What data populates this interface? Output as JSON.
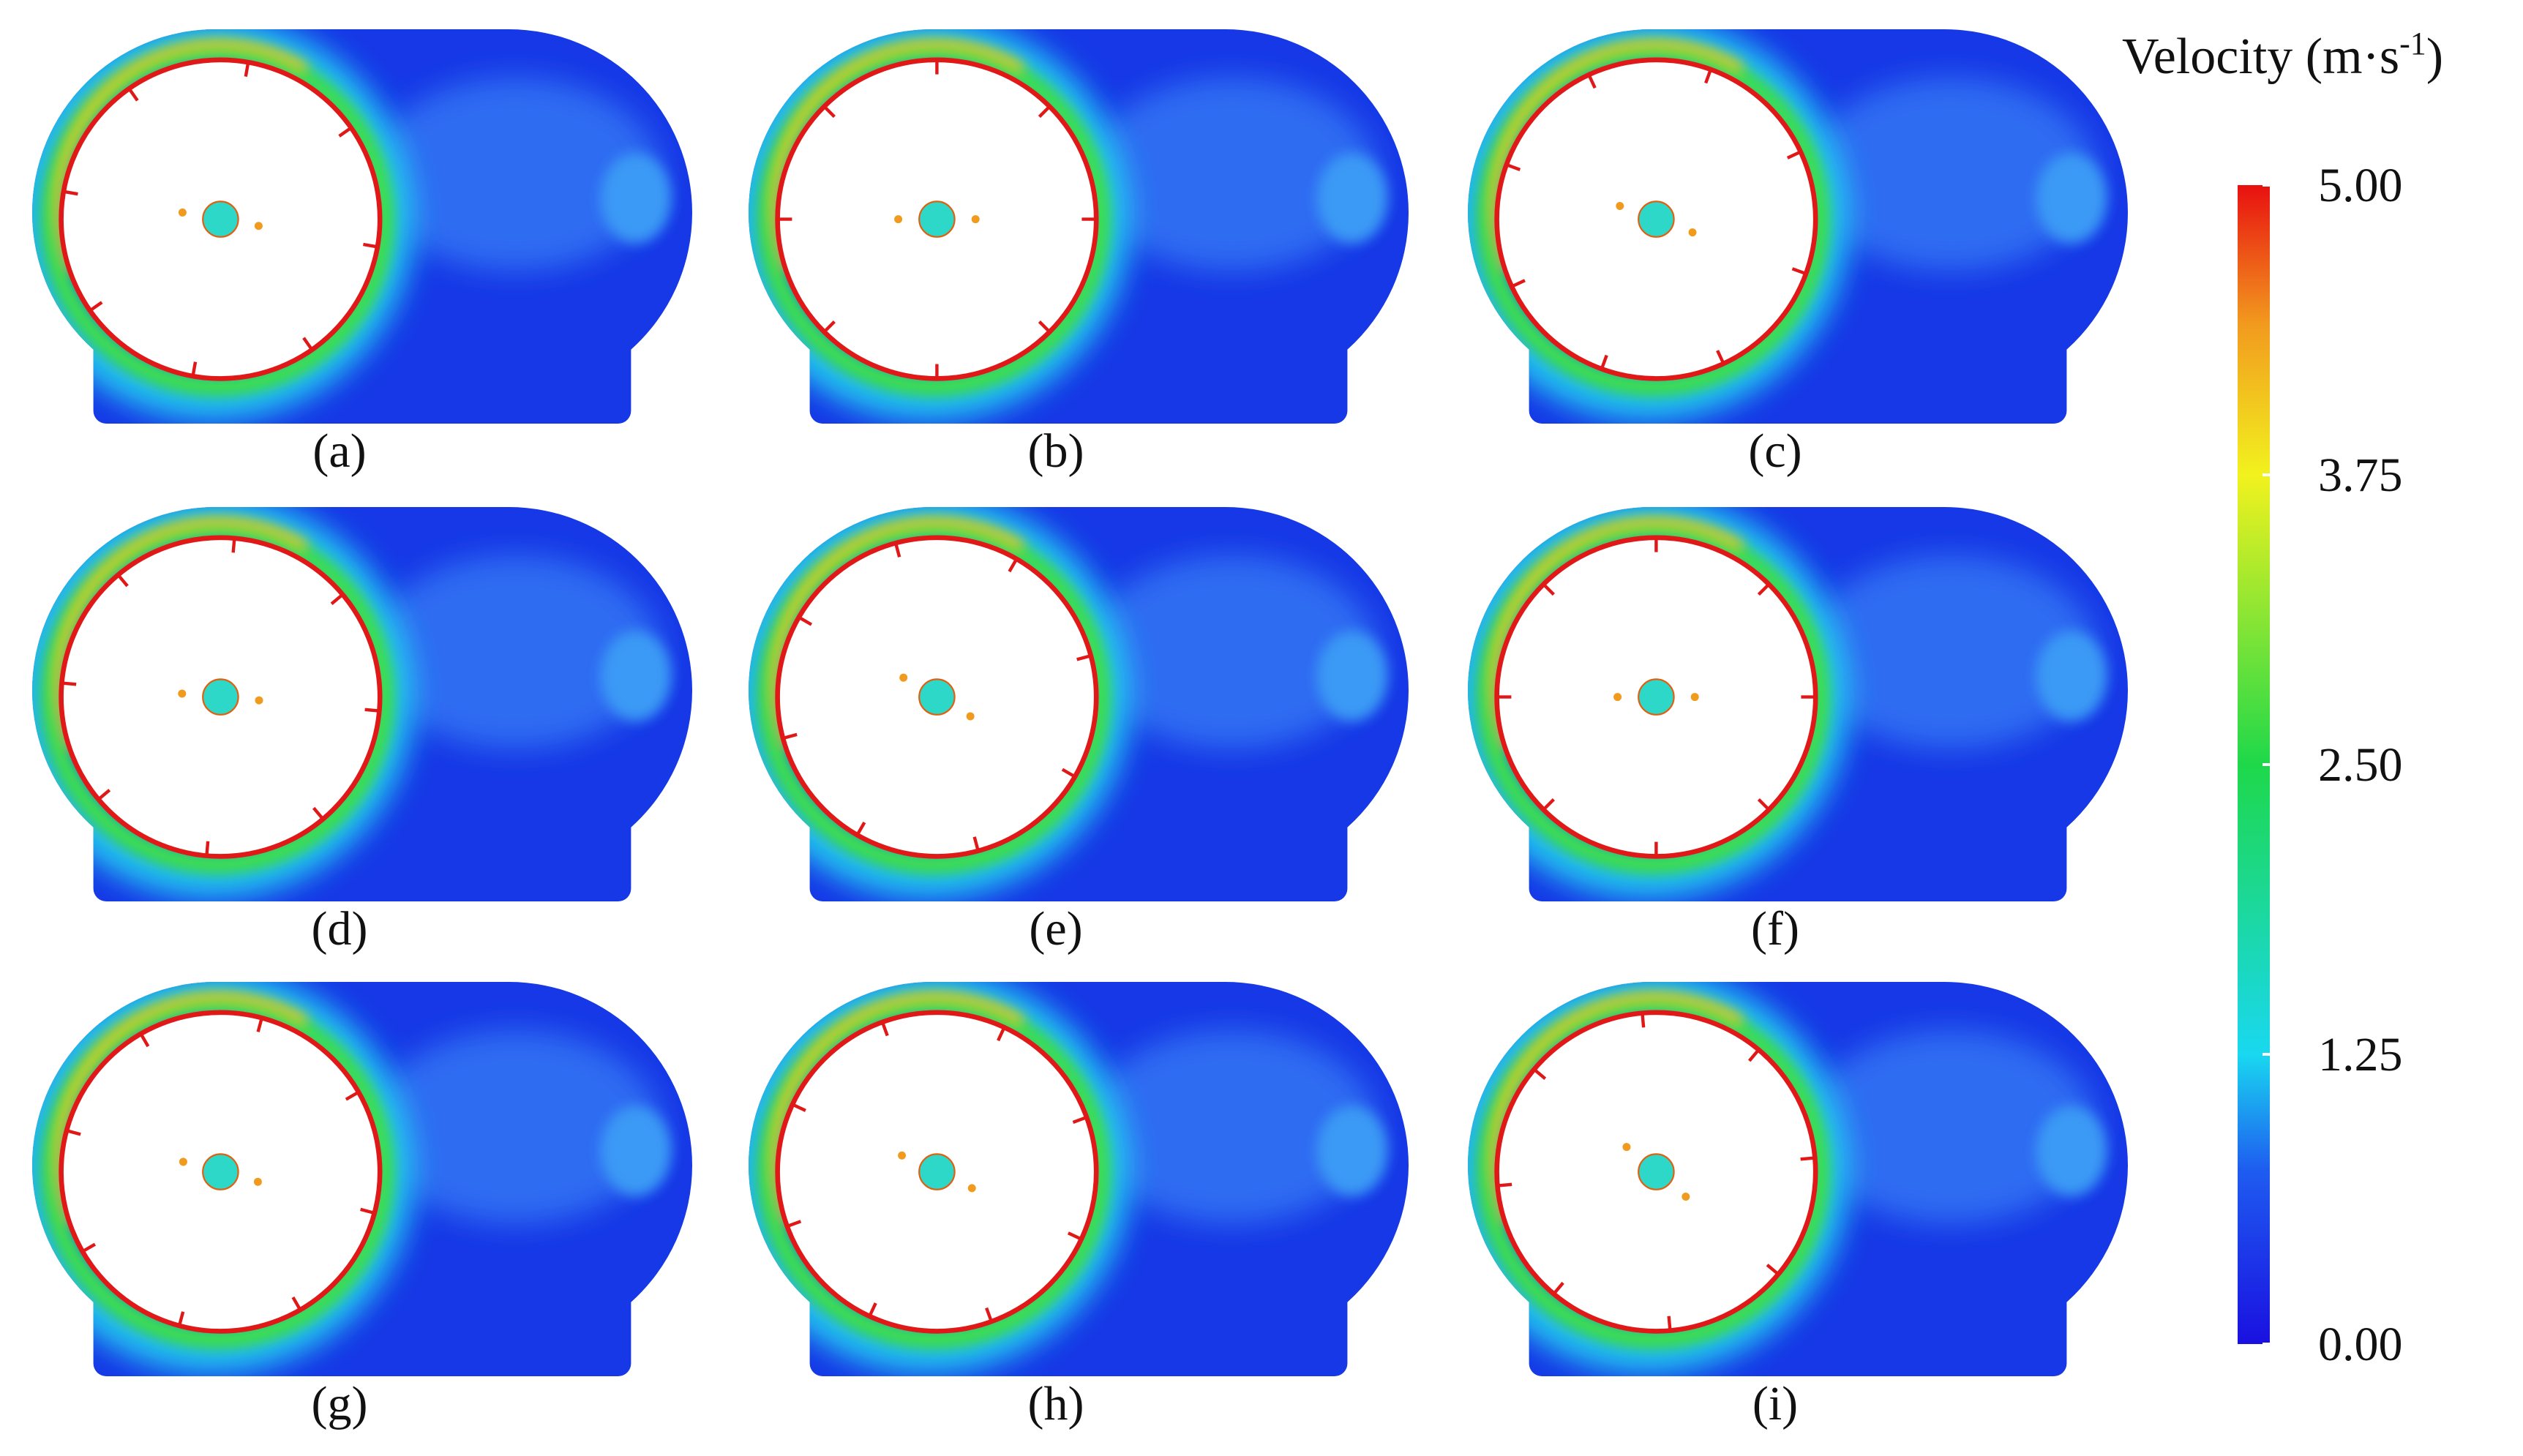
{
  "panels": [
    {
      "label": "(a)"
    },
    {
      "label": "(b)"
    },
    {
      "label": "(c)"
    },
    {
      "label": "(d)"
    },
    {
      "label": "(e)"
    },
    {
      "label": "(f)"
    },
    {
      "label": "(g)"
    },
    {
      "label": "(h)"
    },
    {
      "label": "(i)"
    }
  ],
  "colorbar": {
    "title": "Velocity (m·s",
    "title_sup": "-1",
    "title_end": ")",
    "lim": [
      0,
      5
    ],
    "ticks": [
      {
        "value": 0,
        "label": "0.00"
      },
      {
        "value": 1.25,
        "label": "1.25"
      },
      {
        "value": 2.5,
        "label": "2.50"
      },
      {
        "value": 3.75,
        "label": "3.75"
      },
      {
        "value": 5,
        "label": "5.00"
      }
    ]
  }
}
